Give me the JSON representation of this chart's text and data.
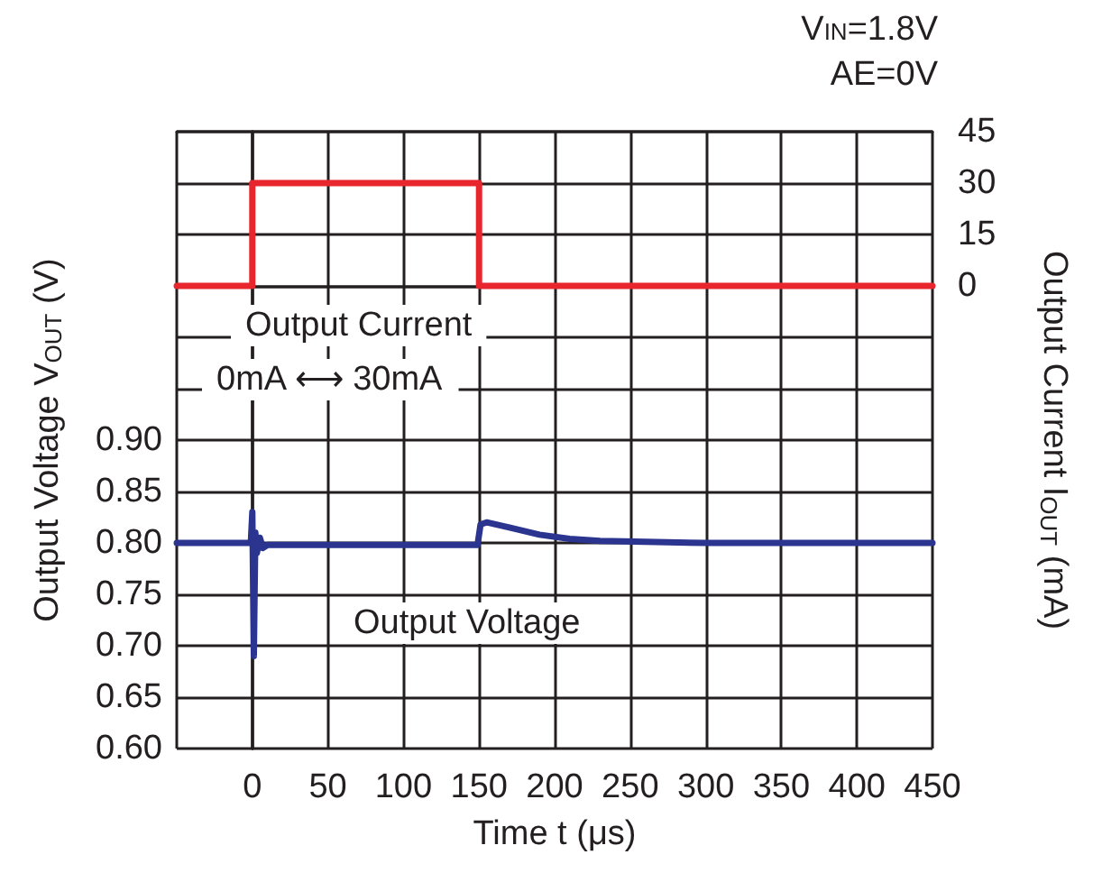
{
  "chart_data": {
    "type": "line",
    "xlabel": "Time t (μs)",
    "ylabel": "Output Voltage V$_{OUT}$ (V)",
    "y2label": "Output Current I$_{OUT}$ (mA)",
    "annotations": [
      "0mA ⟷ 30mA",
      "V$_{IN}$=1.8V",
      "AE=0V"
    ],
    "xlim": [
      -50,
      450
    ],
    "xticks": [
      {
        "value": -50,
        "label": null
      },
      0,
      50,
      100,
      150,
      200,
      250,
      300,
      350,
      400,
      450
    ],
    "ylim": [
      0.6,
      1.2
    ],
    "yticks": [
      {
        "value": 0.6,
        "label": "0.60"
      },
      {
        "value": 0.65,
        "label": "0.65"
      },
      {
        "value": 0.7,
        "label": "0.70"
      },
      {
        "value": 0.75,
        "label": "0.75"
      },
      {
        "value": 0.8,
        "label": "0.80"
      },
      {
        "value": 0.85,
        "label": "0.85"
      },
      {
        "value": 0.9,
        "label": "0.90"
      },
      {
        "value": 0.95,
        "label": null
      },
      {
        "value": 1.0,
        "label": null
      },
      {
        "value": 1.05,
        "label": null
      },
      {
        "value": 1.1,
        "label": null
      },
      {
        "value": 1.15,
        "label": null
      },
      {
        "value": 1.2,
        "label": null
      }
    ],
    "y2lim": [
      -135,
      45
    ],
    "y2ticks": [
      0,
      15,
      30,
      45
    ],
    "grid": true,
    "legend": false,
    "marker": "none",
    "line_style": "solid",
    "series": [
      {
        "name": "Output Current",
        "color": "#e8262d",
        "axis": "y2",
        "x": [
          -50,
          0,
          0,
          150,
          150,
          450
        ],
        "values": [
          0,
          0,
          30,
          30,
          0,
          0
        ]
      },
      {
        "name": "Output Voltage",
        "color": "#2b3590",
        "x": [
          -50,
          -1,
          0,
          1,
          2,
          3,
          5,
          7,
          10,
          149,
          151,
          155,
          170,
          190,
          210,
          230,
          260,
          300,
          450
        ],
        "values": [
          0.8,
          0.8,
          0.83,
          0.69,
          0.81,
          0.79,
          0.805,
          0.795,
          0.798,
          0.798,
          0.818,
          0.82,
          0.815,
          0.808,
          0.804,
          0.802,
          0.801,
          0.8,
          0.8
        ]
      }
    ]
  }
}
